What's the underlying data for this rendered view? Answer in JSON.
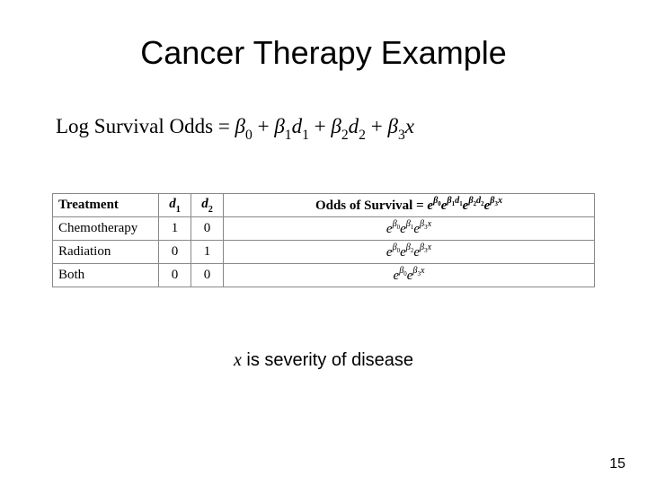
{
  "title": "Cancer Therapy Example",
  "equation": {
    "lhs": "Log Survival Odds",
    "eq": " = ",
    "b0": "β",
    "s0": "0",
    "p1": " + ",
    "b1": "β",
    "s1": "1",
    "d1": "d",
    "ds1": "1",
    "p2": " + ",
    "b2": "β",
    "s2": "2",
    "d2": "d",
    "ds2": "2",
    "p3": " + ",
    "b3": "β",
    "s3": "3",
    "x": "x"
  },
  "table": {
    "headers": {
      "treatment": "Treatment",
      "d1": "d",
      "d1s": "1",
      "d2": "d",
      "d2s": "2",
      "odds_label": "Odds of Survival",
      "eq": " = "
    },
    "header_odds": {
      "e1": "e",
      "b1": "β",
      "s1": "0",
      "e2": "e",
      "b2": "β",
      "s2": "1",
      "d2": "d",
      "ds2": "1",
      "e3": "e",
      "b3": "β",
      "s3": "2",
      "d3": "d",
      "ds3": "2",
      "e4": "e",
      "b4": "β",
      "s4": "3",
      "x4": "x"
    },
    "rows": [
      {
        "treatment": "Chemotherapy",
        "d1": "1",
        "d2": "0",
        "odds": {
          "e1": "e",
          "b1": "β",
          "s1": "0",
          "e2": "e",
          "b2": "β",
          "s2": "1",
          "e3": "e",
          "b3": "β",
          "s3": "3",
          "x3": "x"
        }
      },
      {
        "treatment": "Radiation",
        "d1": "0",
        "d2": "1",
        "odds": {
          "e1": "e",
          "b1": "β",
          "s1": "0",
          "e2": "e",
          "b2": "β",
          "s2": "2",
          "e3": "e",
          "b3": "β",
          "s3": "3",
          "x3": "x"
        }
      },
      {
        "treatment": "Both",
        "d1": "0",
        "d2": "0",
        "odds": {
          "e1": "e",
          "b1": "β",
          "s1": "0",
          "e3": "e",
          "b3": "β",
          "s3": "3",
          "x3": "x"
        }
      }
    ]
  },
  "footer": {
    "x": "x",
    "rest": " is severity of disease"
  },
  "page_number": "15",
  "colors": {
    "background": "#ffffff",
    "text": "#000000",
    "border": "#888888"
  }
}
